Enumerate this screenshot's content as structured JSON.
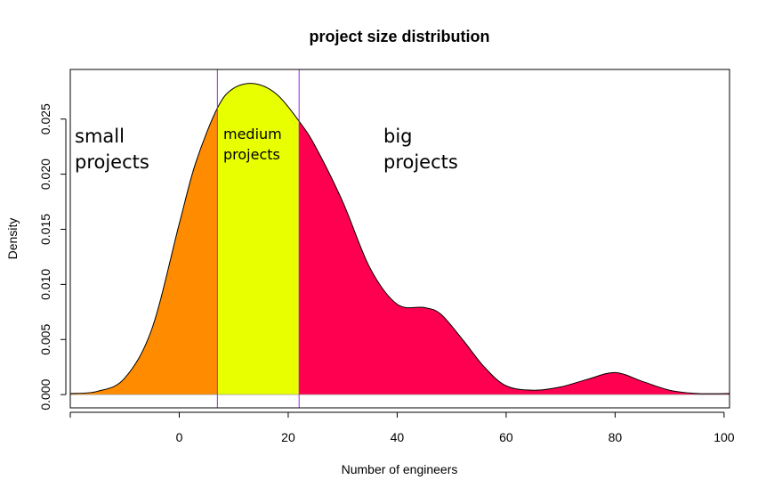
{
  "chart_data": {
    "type": "area",
    "title": "project size distribution",
    "xlabel": "Number of engineers",
    "ylabel": "Density",
    "xlim": [
      -20,
      101
    ],
    "ylim": [
      -0.0012,
      0.0295
    ],
    "x_ticks": [
      0,
      20,
      40,
      60,
      80,
      100
    ],
    "y_ticks": [
      0.0,
      0.005,
      0.01,
      0.015,
      0.02,
      0.025
    ],
    "y_tick_labels": [
      "0.000",
      "0.005",
      "0.010",
      "0.015",
      "0.020",
      "0.025"
    ],
    "density_curve": {
      "x": [
        -20,
        -15,
        -10,
        -5,
        0,
        3,
        7,
        10,
        14,
        18,
        22,
        25,
        30,
        35,
        40,
        45,
        48,
        52,
        56,
        60,
        65,
        70,
        75,
        80,
        85,
        90,
        95,
        101
      ],
      "y": [
        0.0001,
        0.0003,
        0.0015,
        0.006,
        0.0155,
        0.021,
        0.026,
        0.0278,
        0.0282,
        0.0272,
        0.0248,
        0.0225,
        0.0175,
        0.0115,
        0.0082,
        0.0079,
        0.0073,
        0.005,
        0.0025,
        0.0008,
        0.0004,
        0.0007,
        0.0014,
        0.002,
        0.0012,
        0.0004,
        0.0001,
        0.0001
      ]
    },
    "regions": [
      {
        "label_lines": [
          "small",
          "projects"
        ],
        "x_from": -20,
        "x_to": 7,
        "color": "#ff8c00"
      },
      {
        "label_lines": [
          "medium",
          "projects"
        ],
        "x_from": 7,
        "x_to": 22,
        "color": "#e8ff00"
      },
      {
        "label_lines": [
          "big",
          "projects"
        ],
        "x_from": 22,
        "x_to": 101,
        "color": "#ff0050"
      }
    ],
    "boundary_lines": [
      7,
      22
    ],
    "boundary_color": "#a020f0",
    "grid": false,
    "legend": "none"
  }
}
